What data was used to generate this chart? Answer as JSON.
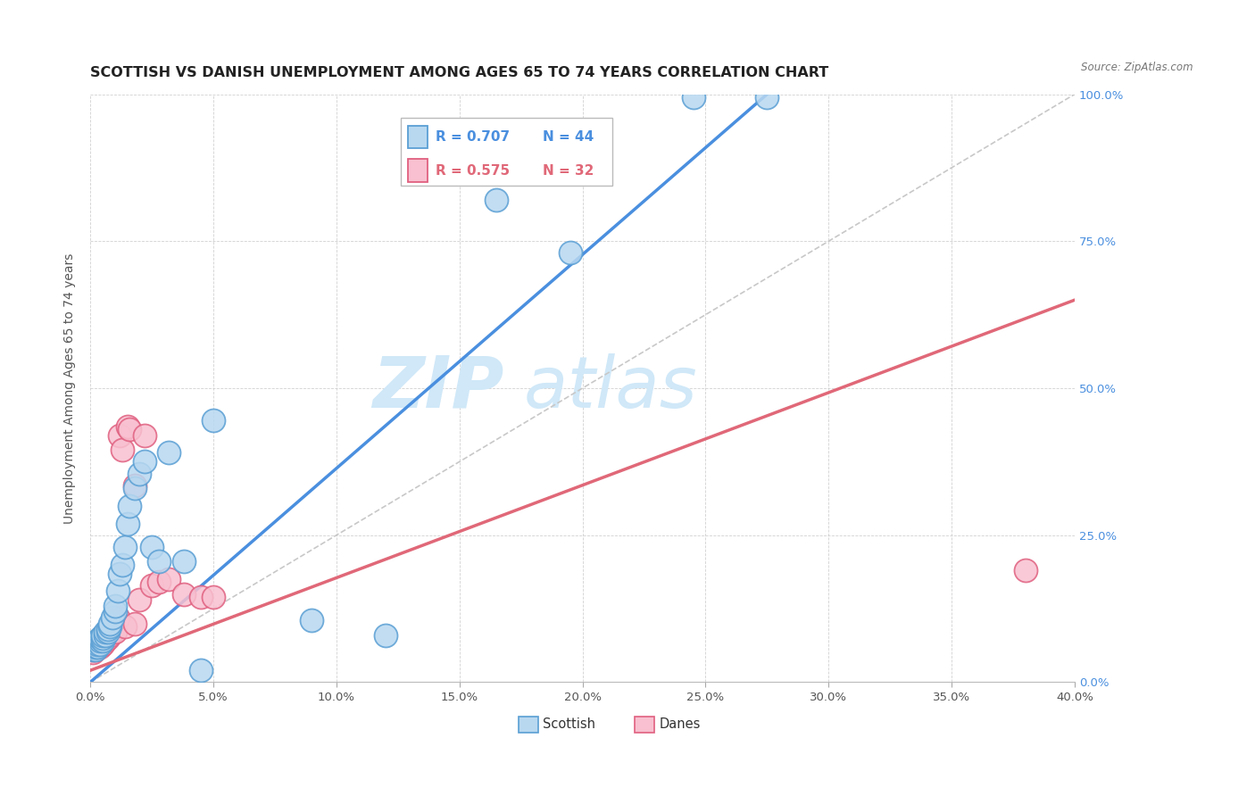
{
  "title": "SCOTTISH VS DANISH UNEMPLOYMENT AMONG AGES 65 TO 74 YEARS CORRELATION CHART",
  "source": "Source: ZipAtlas.com",
  "ylabel": "Unemployment Among Ages 65 to 74 years",
  "xlim": [
    0.0,
    0.4
  ],
  "ylim": [
    0.0,
    1.0
  ],
  "xticks": [
    0.0,
    0.05,
    0.1,
    0.15,
    0.2,
    0.25,
    0.3,
    0.35,
    0.4
  ],
  "yticks": [
    0.0,
    0.25,
    0.5,
    0.75,
    1.0
  ],
  "xtick_labels": [
    "0.0%",
    "5.0%",
    "10.0%",
    "15.0%",
    "20.0%",
    "25.0%",
    "30.0%",
    "35.0%",
    "40.0%"
  ],
  "ytick_labels": [
    "0.0%",
    "25.0%",
    "50.0%",
    "75.0%",
    "100.0%"
  ],
  "legend_labels": [
    "Scottish",
    "Danes"
  ],
  "R_scottish": "R = 0.707",
  "N_scottish": "N = 44",
  "R_danes": "R = 0.575",
  "N_danes": "N = 32",
  "color_scottish_fill": "#b8d8f0",
  "color_scottish_edge": "#5a9fd4",
  "color_danes_fill": "#f8c0d0",
  "color_danes_edge": "#e06080",
  "color_scottish_line": "#4a8fdf",
  "color_danes_line": "#e06878",
  "color_ref_line": "#c8c8c8",
  "bg_color": "#ffffff",
  "watermark_color": "#d0e8f8",
  "title_fontsize": 11.5,
  "axis_fontsize": 10,
  "tick_fontsize": 9.5,
  "scottish_x": [
    0.001,
    0.001,
    0.002,
    0.002,
    0.002,
    0.003,
    0.003,
    0.003,
    0.004,
    0.004,
    0.004,
    0.005,
    0.005,
    0.005,
    0.006,
    0.006,
    0.007,
    0.007,
    0.008,
    0.008,
    0.009,
    0.01,
    0.01,
    0.011,
    0.012,
    0.013,
    0.014,
    0.015,
    0.016,
    0.018,
    0.02,
    0.022,
    0.025,
    0.028,
    0.032,
    0.038,
    0.045,
    0.05,
    0.09,
    0.12,
    0.165,
    0.195,
    0.245,
    0.275
  ],
  "scottish_y": [
    0.055,
    0.06,
    0.055,
    0.06,
    0.065,
    0.06,
    0.065,
    0.07,
    0.065,
    0.07,
    0.075,
    0.07,
    0.075,
    0.08,
    0.08,
    0.085,
    0.085,
    0.09,
    0.095,
    0.1,
    0.11,
    0.12,
    0.13,
    0.155,
    0.185,
    0.2,
    0.23,
    0.27,
    0.3,
    0.33,
    0.355,
    0.375,
    0.23,
    0.205,
    0.39,
    0.205,
    0.02,
    0.445,
    0.105,
    0.08,
    0.82,
    0.73,
    0.995,
    0.995
  ],
  "danes_x": [
    0.001,
    0.001,
    0.002,
    0.002,
    0.003,
    0.003,
    0.004,
    0.004,
    0.005,
    0.005,
    0.006,
    0.007,
    0.008,
    0.009,
    0.01,
    0.011,
    0.012,
    0.013,
    0.014,
    0.015,
    0.016,
    0.018,
    0.02,
    0.022,
    0.025,
    0.028,
    0.032,
    0.038,
    0.045,
    0.05,
    0.38,
    0.018
  ],
  "danes_y": [
    0.05,
    0.055,
    0.055,
    0.06,
    0.06,
    0.065,
    0.06,
    0.065,
    0.065,
    0.07,
    0.07,
    0.075,
    0.08,
    0.085,
    0.085,
    0.11,
    0.42,
    0.395,
    0.095,
    0.435,
    0.43,
    0.1,
    0.14,
    0.42,
    0.165,
    0.17,
    0.175,
    0.15,
    0.145,
    0.145,
    0.19,
    0.335
  ],
  "scot_line_x": [
    0.0,
    0.275
  ],
  "scot_line_y": [
    0.0,
    1.0
  ],
  "dan_line_x": [
    0.0,
    0.4
  ],
  "dan_line_y": [
    0.02,
    0.65
  ],
  "ref_line_x": [
    0.0,
    0.4
  ],
  "ref_line_y": [
    0.0,
    1.0
  ]
}
